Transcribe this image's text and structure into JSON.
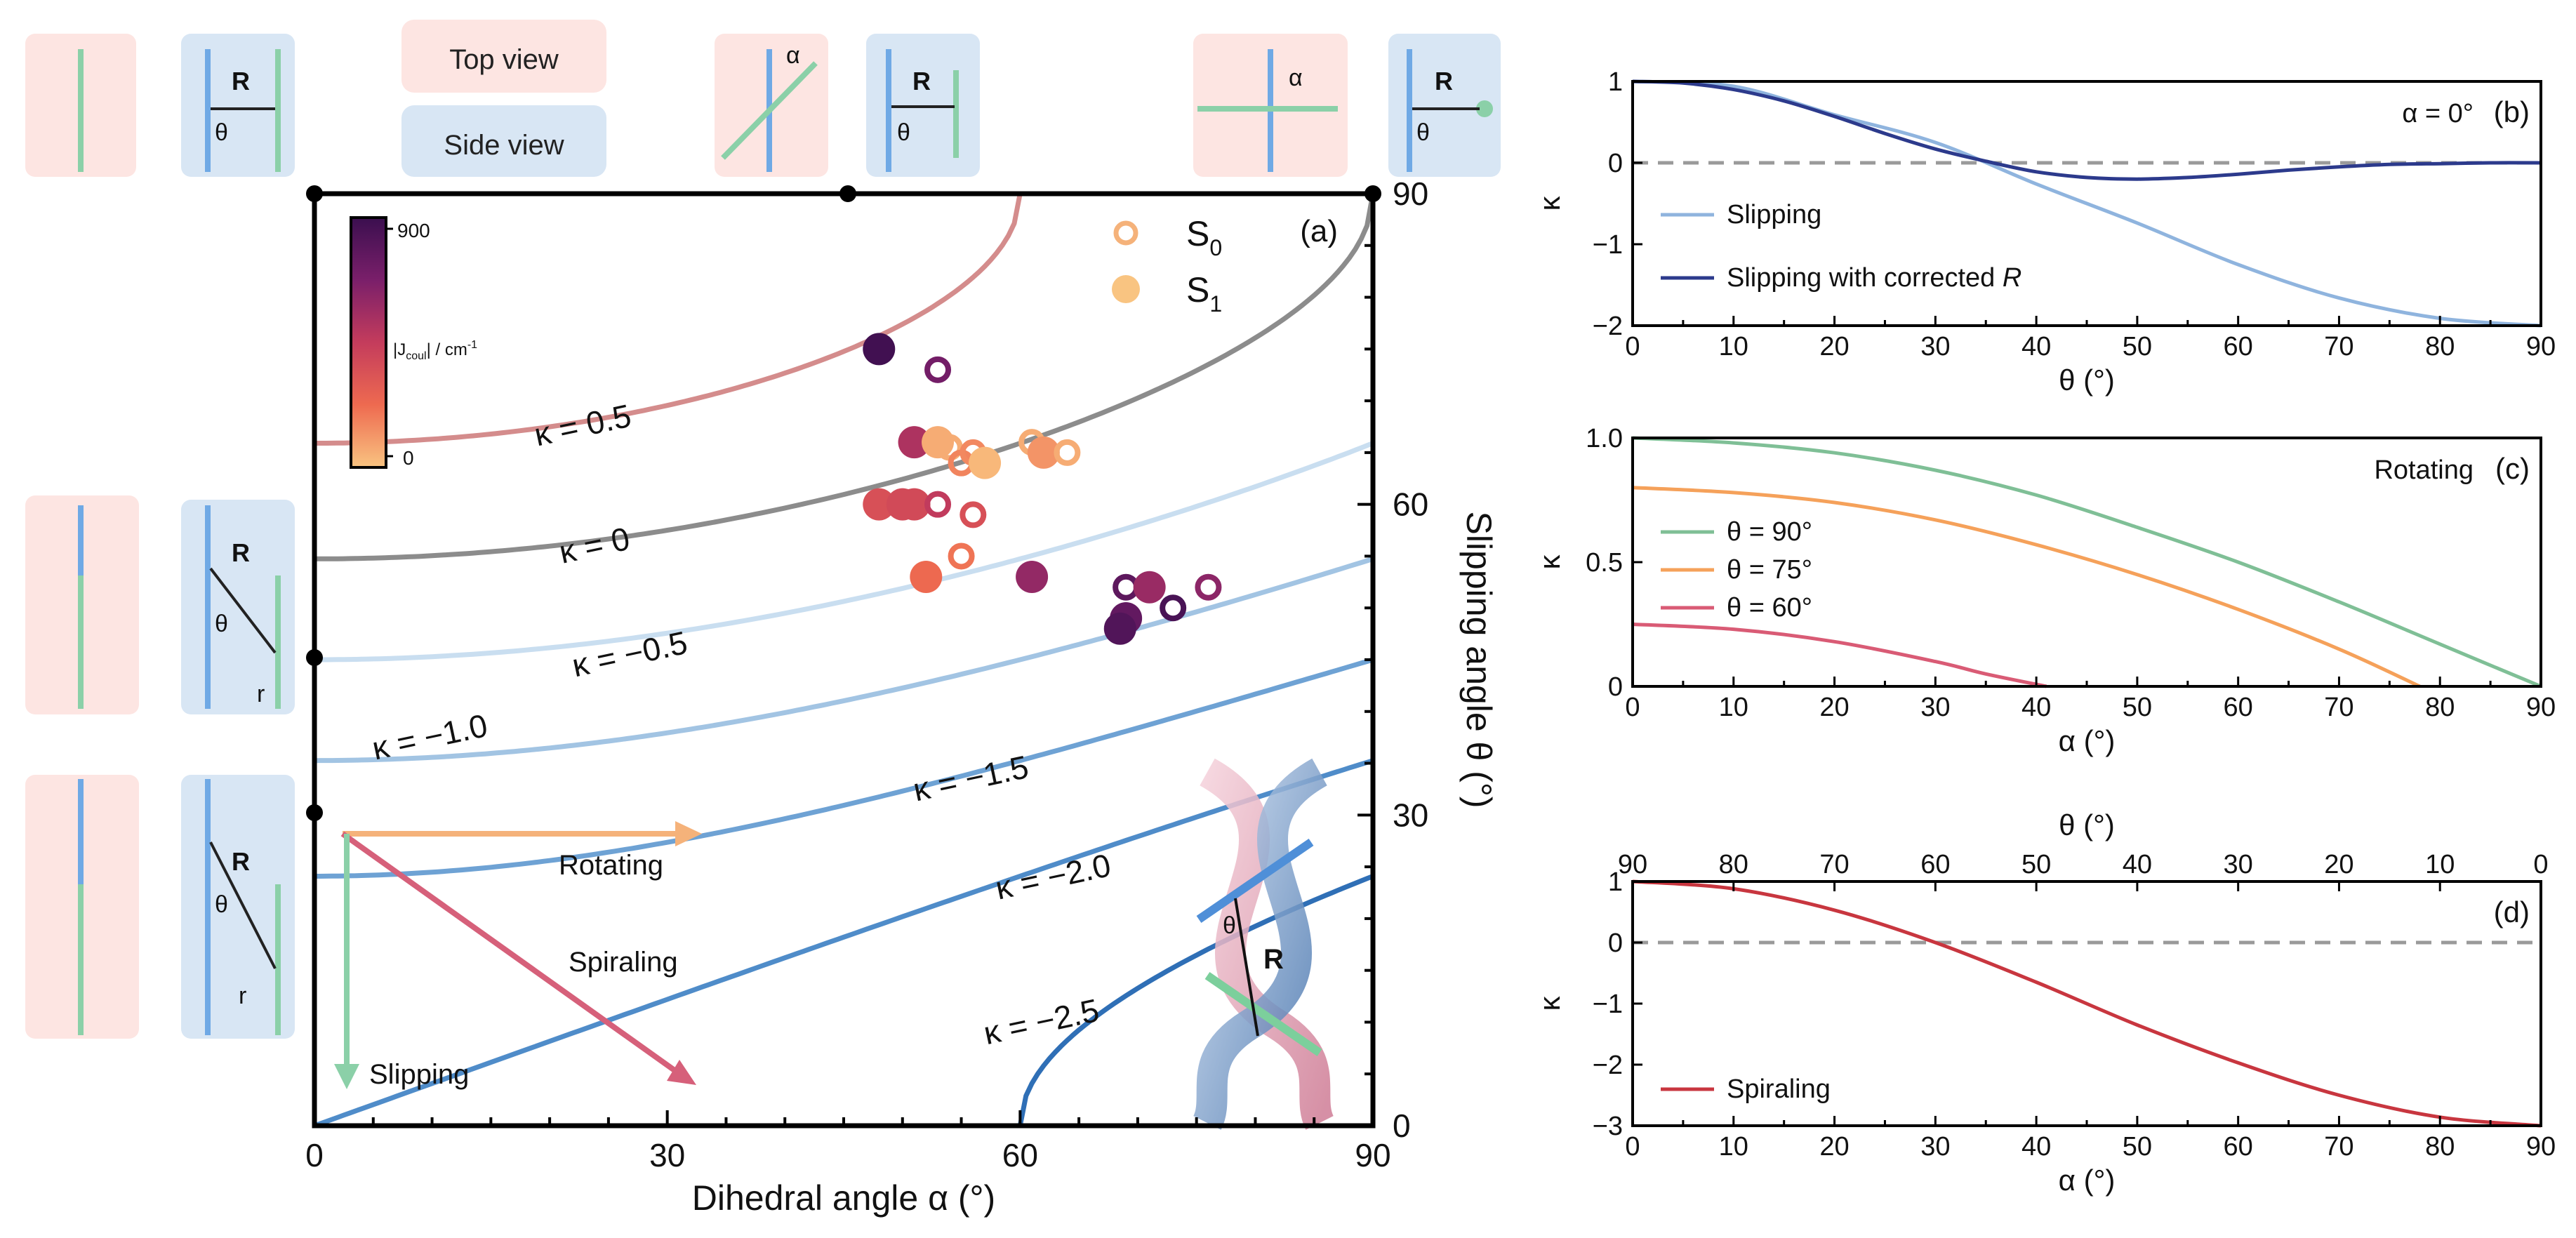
{
  "chart_data": [
    {
      "panel": "a",
      "type": "line",
      "panel_label": "(a)",
      "xlabel": "Dihedral angle α (°)",
      "ylabel": "Slipping angle θ (°)",
      "xlim": [
        0,
        90
      ],
      "ylim": [
        0,
        90
      ],
      "xticks": [
        "0",
        "30",
        "60",
        "90"
      ],
      "yticks": [
        "0",
        "30",
        "60",
        "90"
      ],
      "contours": [
        {
          "label": "κ = 0.5",
          "kappa": 0.5,
          "color": "#d48c8c"
        },
        {
          "label": "κ = 0",
          "kappa": 0,
          "color": "#8c8c8c"
        },
        {
          "label": "κ = −0.5",
          "kappa": -0.5,
          "color": "#c9def0"
        },
        {
          "label": "κ = −1.0",
          "kappa": -1.0,
          "color": "#a2c4e3"
        },
        {
          "label": "κ = −1.5",
          "kappa": -1.5,
          "color": "#6ea2d4"
        },
        {
          "label": "κ = −2.0",
          "kappa": -2.0,
          "color": "#4f8cc9"
        },
        {
          "label": "κ = −2.5",
          "kappa": -2.5,
          "color": "#2f6fb6"
        }
      ],
      "legend": {
        "s0": "S",
        "s0_sub": "0",
        "s1": "S",
        "s1_sub": "1"
      },
      "colorbar": {
        "label": "|J",
        "label_sub": "coul",
        "label_tail": "| / cm",
        "label_sup": "-1",
        "max": "900",
        "min": "0"
      },
      "points": [
        {
          "alpha": 48,
          "theta": 75,
          "state": "S1",
          "j": 880
        },
        {
          "alpha": 53,
          "theta": 73,
          "state": "S0",
          "j": 700
        },
        {
          "alpha": 51,
          "theta": 66,
          "state": "S1",
          "j": 520
        },
        {
          "alpha": 53,
          "theta": 66,
          "state": "S1",
          "j": 60
        },
        {
          "alpha": 54,
          "theta": 65.5,
          "state": "S0",
          "j": 60
        },
        {
          "alpha": 55,
          "theta": 64,
          "state": "S0",
          "j": 160
        },
        {
          "alpha": 56,
          "theta": 65,
          "state": "S0",
          "j": 150
        },
        {
          "alpha": 57,
          "theta": 64,
          "state": "S1",
          "j": 30
        },
        {
          "alpha": 61,
          "theta": 66,
          "state": "S0",
          "j": 60
        },
        {
          "alpha": 62,
          "theta": 65,
          "state": "S1",
          "j": 120
        },
        {
          "alpha": 64,
          "theta": 65,
          "state": "S0",
          "j": 60
        },
        {
          "alpha": 48,
          "theta": 60,
          "state": "S1",
          "j": 350
        },
        {
          "alpha": 50,
          "theta": 60,
          "state": "S1",
          "j": 380
        },
        {
          "alpha": 51,
          "theta": 60,
          "state": "S1",
          "j": 380
        },
        {
          "alpha": 53,
          "theta": 60,
          "state": "S0",
          "j": 460
        },
        {
          "alpha": 56,
          "theta": 59,
          "state": "S0",
          "j": 350
        },
        {
          "alpha": 55,
          "theta": 55,
          "state": "S0",
          "j": 200
        },
        {
          "alpha": 52,
          "theta": 53,
          "state": "S1",
          "j": 230
        },
        {
          "alpha": 61,
          "theta": 53,
          "state": "S1",
          "j": 600
        },
        {
          "alpha": 69,
          "theta": 52,
          "state": "S0",
          "j": 780
        },
        {
          "alpha": 71,
          "theta": 52,
          "state": "S1",
          "j": 580
        },
        {
          "alpha": 73,
          "theta": 50,
          "state": "S0",
          "j": 850
        },
        {
          "alpha": 76,
          "theta": 52,
          "state": "S0",
          "j": 620
        },
        {
          "alpha": 69,
          "theta": 49,
          "state": "S1",
          "j": 760
        },
        {
          "alpha": 68.5,
          "theta": 48,
          "state": "S1",
          "j": 820
        }
      ],
      "paths": {
        "rotating": "Rotating",
        "spiraling": "Spiraling",
        "slipping": "Slipping"
      },
      "insets": {
        "top_view": "Top view",
        "side_view": "Side view",
        "R": "R",
        "theta": "θ",
        "alpha": "α",
        "r": "r"
      }
    },
    {
      "panel": "b",
      "type": "line",
      "panel_label": "(b)",
      "annotation": "α = 0°",
      "xlabel": "θ (°)",
      "ylabel": "κ",
      "xlim": [
        0,
        90
      ],
      "ylim": [
        -2,
        1
      ],
      "xticks": [
        "0",
        "10",
        "20",
        "30",
        "40",
        "50",
        "60",
        "70",
        "80",
        "90"
      ],
      "yticks": [
        "1",
        "0",
        "−1",
        "−2"
      ],
      "series": [
        {
          "name": "Slipping",
          "color": "#8fb4de",
          "x": [
            0,
            10,
            20,
            30,
            40,
            50,
            60,
            70,
            80,
            90
          ],
          "y": [
            1.0,
            0.94,
            0.59,
            0.25,
            -0.26,
            -0.74,
            -1.25,
            -1.66,
            -1.91,
            -2.0
          ]
        },
        {
          "name": "Slipping with corrected R",
          "name_italic": "R",
          "color": "#2c3a8c",
          "x": [
            0,
            5,
            10,
            15,
            20,
            25,
            30,
            35,
            40,
            45,
            50,
            55,
            60,
            65,
            70,
            75,
            80,
            85,
            90
          ],
          "y": [
            1.0,
            0.98,
            0.9,
            0.76,
            0.57,
            0.36,
            0.17,
            0.02,
            -0.11,
            -0.18,
            -0.2,
            -0.18,
            -0.14,
            -0.09,
            -0.05,
            -0.02,
            -0.01,
            0.0,
            0.0
          ]
        }
      ],
      "reference_line": 0
    },
    {
      "panel": "c",
      "type": "line",
      "panel_label": "(c)",
      "annotation": "Rotating",
      "xlabel": "α (°)",
      "ylabel": "κ",
      "xlim": [
        0,
        90
      ],
      "ylim": [
        0,
        1.0
      ],
      "xticks": [
        "0",
        "10",
        "20",
        "30",
        "40",
        "50",
        "60",
        "70",
        "80",
        "90"
      ],
      "yticks": [
        "1.0",
        "0.5",
        "0"
      ],
      "series": [
        {
          "name": "θ = 90°",
          "color": "#7fbf96",
          "x": [
            0,
            10,
            20,
            30,
            40,
            50,
            60,
            70,
            80,
            90
          ],
          "y": [
            1.0,
            0.98,
            0.94,
            0.87,
            0.77,
            0.64,
            0.5,
            0.34,
            0.17,
            0.0
          ]
        },
        {
          "name": "θ = 75°",
          "color": "#f5a15a",
          "x": [
            0,
            10,
            20,
            30,
            40,
            50,
            60,
            70,
            78
          ],
          "y": [
            0.8,
            0.78,
            0.74,
            0.67,
            0.57,
            0.45,
            0.31,
            0.15,
            0.0
          ]
        },
        {
          "name": "θ = 60°",
          "color": "#d95b75",
          "x": [
            0,
            10,
            20,
            30,
            35,
            41
          ],
          "y": [
            0.25,
            0.23,
            0.18,
            0.1,
            0.05,
            0.0
          ]
        }
      ]
    },
    {
      "panel": "d",
      "type": "line",
      "panel_label": "(d)",
      "xlabel": "α (°)",
      "top_xlabel": "θ (°)",
      "ylabel": "κ",
      "xlim": [
        0,
        90
      ],
      "ylim": [
        -3,
        1
      ],
      "xticks": [
        "0",
        "10",
        "20",
        "30",
        "40",
        "50",
        "60",
        "70",
        "80",
        "90"
      ],
      "top_xticks": [
        "90",
        "80",
        "70",
        "60",
        "50",
        "40",
        "30",
        "20",
        "10",
        "0"
      ],
      "yticks": [
        "1",
        "0",
        "−1",
        "−2",
        "−3"
      ],
      "series": [
        {
          "name": "Spiraling",
          "color": "#c8363f",
          "x": [
            0,
            10,
            20,
            30,
            40,
            50,
            60,
            70,
            80,
            90
          ],
          "y": [
            1.0,
            0.88,
            0.53,
            0.0,
            -0.65,
            -1.35,
            -1.97,
            -2.5,
            -2.86,
            -3.0
          ]
        }
      ],
      "reference_line": 0
    }
  ]
}
